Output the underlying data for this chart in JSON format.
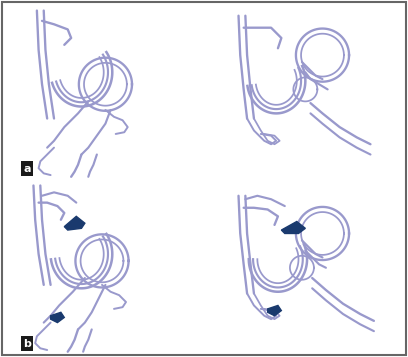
{
  "background_color": "#ffffff",
  "line_color": "#9999cc",
  "dark_blue": "#1a3a6e",
  "label_bg": "#1a1a1a",
  "label_color": "#ffffff",
  "line_width": 1.4,
  "fig_width": 4.08,
  "fig_height": 3.57,
  "dpi": 100
}
